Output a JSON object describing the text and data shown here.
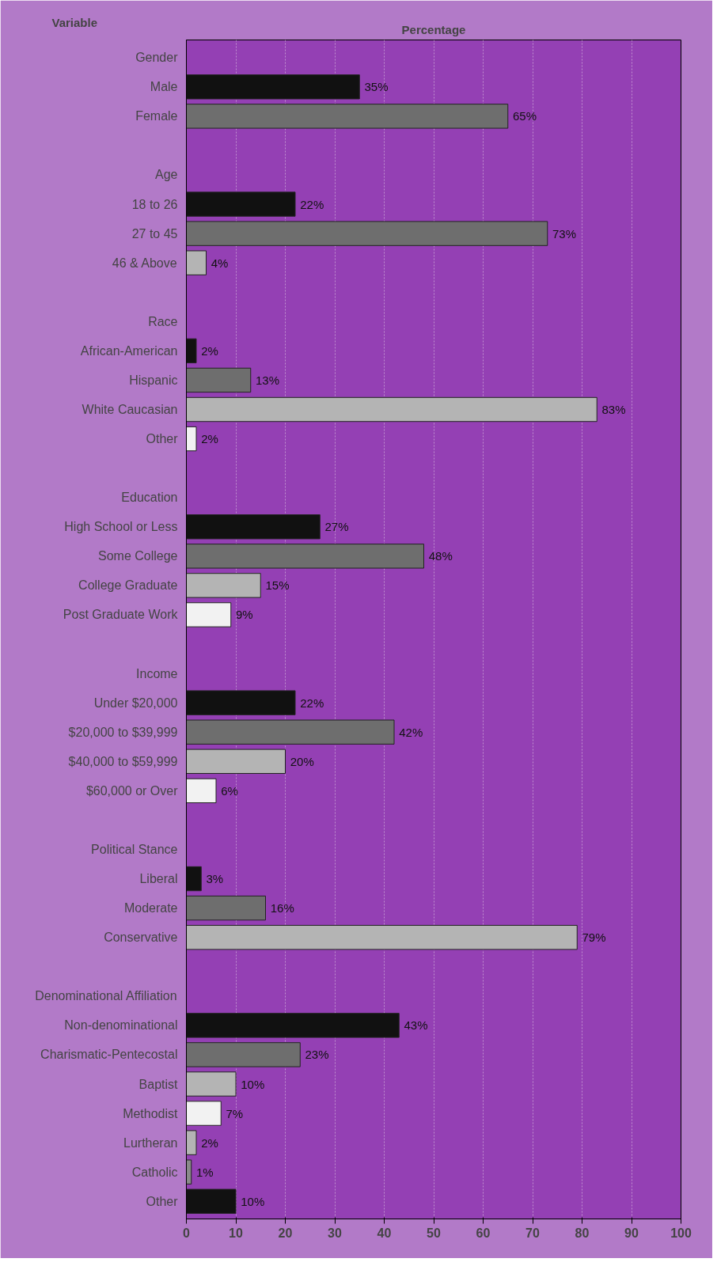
{
  "chart_data": {
    "type": "bar",
    "orientation": "horizontal",
    "xlabel": "Percentage",
    "ylabel": "Variable",
    "categories": [
      "Gender",
      "Male",
      "Female",
      null,
      "Age",
      "18 to 26",
      "27 to 45",
      "46 & Above",
      null,
      "Race",
      "African-American",
      "Hispanic",
      "White Caucasian",
      "Other",
      null,
      "Education",
      "High School or Less",
      "Some College",
      "College Graduate",
      "Post Graduate Work",
      null,
      "Income",
      "Under $20,000",
      "$20,000 to $39,999",
      "$40,000 to $59,999",
      "$60,000 or Over",
      null,
      "Political Stance",
      "Liberal",
      "Moderate",
      "Conservative",
      null,
      "Denominational Affiliation",
      "Non-denominational",
      "Charismatic-Pentecostal",
      "Baptist",
      "Methodist",
      "Lurtheran",
      "Catholic",
      "Other"
    ],
    "values": [
      null,
      35,
      65,
      null,
      null,
      22,
      73,
      4,
      null,
      null,
      2,
      13,
      83,
      2,
      null,
      null,
      27,
      48,
      15,
      9,
      null,
      null,
      22,
      42,
      20,
      6,
      null,
      null,
      3,
      16,
      79,
      null,
      null,
      43,
      23,
      10,
      7,
      2,
      1,
      10
    ],
    "value_labels": [
      null,
      "35%",
      "65%",
      null,
      null,
      "22%",
      "73%",
      "4%",
      null,
      null,
      "2%",
      "13%",
      "83%",
      "2%",
      null,
      null,
      "27%",
      "48%",
      "15%",
      "9%",
      null,
      null,
      "22%",
      "42%",
      "20%",
      "6%",
      null,
      null,
      "3%",
      "16%",
      "79%",
      null,
      null,
      "43%",
      "23%",
      "10%",
      "7%",
      "2%",
      "1%",
      "10%"
    ],
    "colors": [
      null,
      "#111111",
      "#6e6e6e",
      null,
      null,
      "#111111",
      "#6e6e6e",
      "#b4b4b4",
      null,
      null,
      "#111111",
      "#6e6e6e",
      "#b4b4b4",
      "#f2f2f2",
      null,
      null,
      "#111111",
      "#6e6e6e",
      "#b4b4b4",
      "#f2f2f2",
      null,
      null,
      "#111111",
      "#6e6e6e",
      "#b4b4b4",
      "#f2f2f2",
      null,
      null,
      "#111111",
      "#6e6e6e",
      "#b4b4b4",
      null,
      null,
      "#111111",
      "#6e6e6e",
      "#b4b4b4",
      "#f2f2f2",
      "#b4b4b4",
      "#8a8a8a",
      "#111111"
    ],
    "xlim": [
      0,
      100
    ],
    "xticks": [
      0,
      10,
      20,
      30,
      40,
      50,
      60,
      70,
      80,
      90,
      100
    ],
    "grid": "x"
  }
}
